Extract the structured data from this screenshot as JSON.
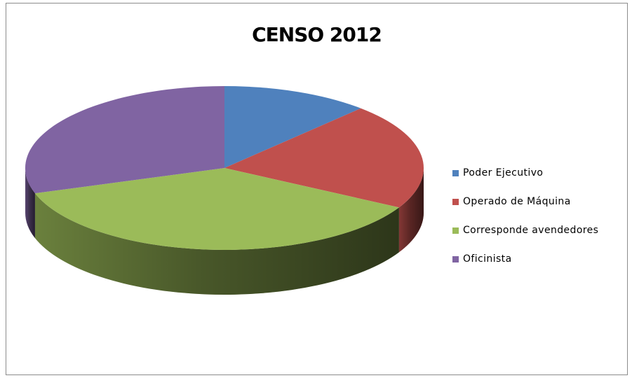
{
  "chart_data": {
    "type": "pie",
    "title": "CENSO 2012",
    "categories": [
      "Poder Ejecutivo",
      "Operado de Máquina",
      "Corresponde avendedores",
      "Oficinista"
    ],
    "values": [
      12,
      21,
      37,
      30
    ],
    "colors": [
      "#4F81BD",
      "#C0504D",
      "#9BBB59",
      "#8064A2"
    ],
    "legend_position": "right",
    "three_d": true
  }
}
